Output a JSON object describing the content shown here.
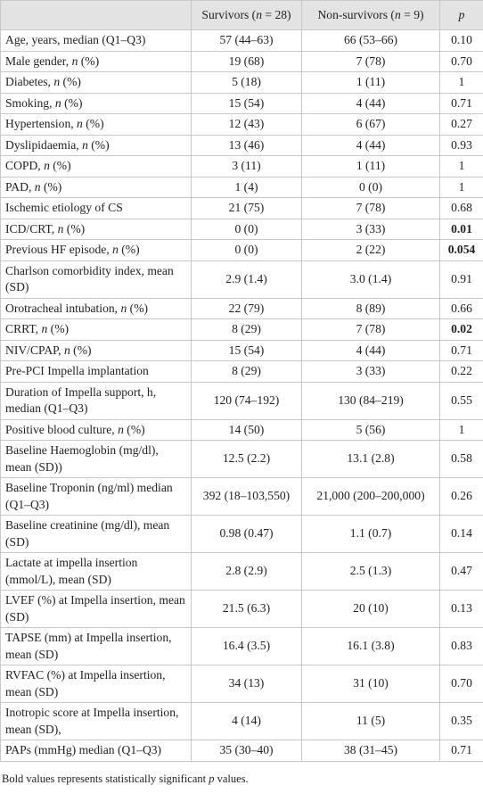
{
  "table": {
    "header": [
      "Survivors (n = 28)",
      "Non-survivors (n = 9)",
      "p"
    ],
    "rows": [
      {
        "label": "Age, years, median (Q1–Q3)",
        "survivors": "57 (44–63)",
        "non_survivors": "66 (53–66)",
        "p": "0.10"
      },
      {
        "label": "Male gender, n (%)",
        "survivors": "19 (68)",
        "non_survivors": "7 (78)",
        "p": "0.70"
      },
      {
        "label": "Diabetes, n (%)",
        "survivors": "5 (18)",
        "non_survivors": "1 (11)",
        "p": "1"
      },
      {
        "label": "Smoking, n (%)",
        "survivors": "15 (54)",
        "non_survivors": "4 (44)",
        "p": "0.71"
      },
      {
        "label": "Hypertension, n (%)",
        "survivors": "12 (43)",
        "non_survivors": "6 (67)",
        "p": "0.27"
      },
      {
        "label": "Dyslipidaemia, n (%)",
        "survivors": "13 (46)",
        "non_survivors": "4 (44)",
        "p": "0.93"
      },
      {
        "label": "COPD, n (%)",
        "survivors": "3 (11)",
        "non_survivors": "1 (11)",
        "p": "1"
      },
      {
        "label": "PAD, n (%)",
        "survivors": "1 (4)",
        "non_survivors": "0 (0)",
        "p": "1"
      },
      {
        "label": "Ischemic etiology of CS",
        "survivors": "21 (75)",
        "non_survivors": "7 (78)",
        "p": "0.68"
      },
      {
        "label": "ICD/CRT, n (%)",
        "survivors": "0 (0)",
        "non_survivors": "3 (33)",
        "p": "0.01",
        "bold": true
      },
      {
        "label": "Previous HF episode, n (%)",
        "survivors": "0 (0)",
        "non_survivors": "2 (22)",
        "p": "0.054",
        "bold": true
      },
      {
        "label": "Charlson comorbidity index, mean (SD)",
        "survivors": "2.9 (1.4)",
        "non_survivors": "3.0 (1.4)",
        "p": "0.91"
      },
      {
        "label": "Orotracheal intubation, n (%)",
        "survivors": "22 (79)",
        "non_survivors": "8 (89)",
        "p": "0.66"
      },
      {
        "label": "CRRT, n (%)",
        "survivors": "8 (29)",
        "non_survivors": "7 (78)",
        "p": "0.02",
        "bold": true
      },
      {
        "label": "NIV/CPAP, n (%)",
        "survivors": "15 (54)",
        "non_survivors": "4 (44)",
        "p": "0.71"
      },
      {
        "label": "Pre-PCI Impella implantation",
        "survivors": "8 (29)",
        "non_survivors": "3 (33)",
        "p": "0.22"
      },
      {
        "label": "Duration of Impella support, h, median (Q1–Q3)",
        "survivors": "120 (74–192)",
        "non_survivors": "130 (84–219)",
        "p": "0.55"
      },
      {
        "label": "Positive blood culture, n (%)",
        "survivors": "14 (50)",
        "non_survivors": "5 (56)",
        "p": "1"
      },
      {
        "label": "Baseline Haemoglobin (mg/dl), mean (SD))",
        "survivors": "12.5 (2.2)",
        "non_survivors": "13.1 (2.8)",
        "p": "0.58"
      },
      {
        "label": "Baseline Troponin (ng/ml) median (Q1–Q3)",
        "survivors": "392 (18–103,550)",
        "non_survivors": "21,000 (200–200,000)",
        "p": "0.26"
      },
      {
        "label": "Baseline creatinine (mg/dl), mean (SD)",
        "survivors": "0.98 (0.47)",
        "non_survivors": "1.1 (0.7)",
        "p": "0.14"
      },
      {
        "label": "Lactate at impella insertion (mmol/L), mean (SD)",
        "survivors": "2.8 (2.9)",
        "non_survivors": "2.5 (1.3)",
        "p": "0.47"
      },
      {
        "label": "LVEF (%) at Impella insertion, mean (SD)",
        "survivors": "21.5 (6.3)",
        "non_survivors": "20 (10)",
        "p": "0.13"
      },
      {
        "label": "TAPSE (mm) at Impella insertion, mean (SD)",
        "survivors": "16.4 (3.5)",
        "non_survivors": "16.1 (3.8)",
        "p": "0.83"
      },
      {
        "label": "RVFAC (%) at Impella insertion, mean (SD)",
        "survivors": "34 (13)",
        "non_survivors": "31 (10)",
        "p": "0.70"
      },
      {
        "label": "Inotropic score at Impella insertion, mean (SD),",
        "survivors": "4 (14)",
        "non_survivors": "11 (5)",
        "p": "0.35"
      },
      {
        "label": "PAPs (mmHg) median (Q1–Q3)",
        "survivors": "35 (30–40)",
        "non_survivors": "38 (31–45)",
        "p": "0.71"
      }
    ]
  },
  "footnote": "Bold values represents statistically significant p values."
}
